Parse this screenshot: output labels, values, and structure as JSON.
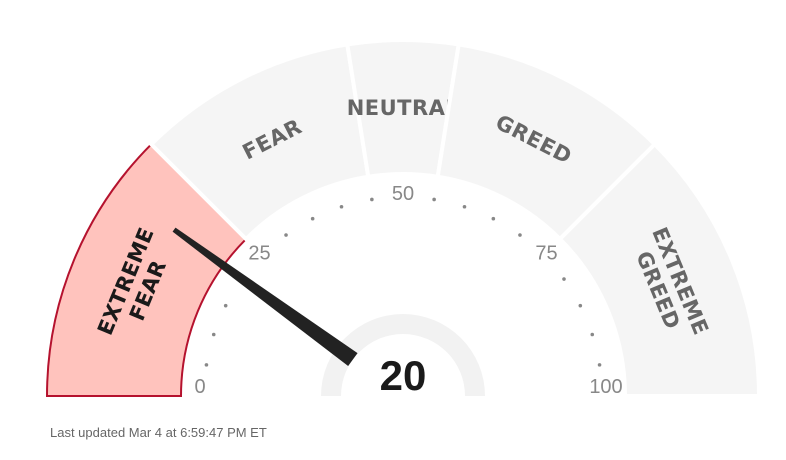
{
  "gauge": {
    "value": 20,
    "value_label": "20",
    "min": 0,
    "max": 100,
    "segments": [
      {
        "lines": [
          "EXTREME",
          "FEAR"
        ],
        "from": 0,
        "to": 25,
        "active": true
      },
      {
        "lines": [
          "FEAR"
        ],
        "from": 25,
        "to": 45,
        "active": false
      },
      {
        "lines": [
          "NEUTRAL"
        ],
        "from": 45,
        "to": 55,
        "active": false
      },
      {
        "lines": [
          "GREED"
        ],
        "from": 55,
        "to": 75,
        "active": false
      },
      {
        "lines": [
          "EXTREME",
          "GREED"
        ],
        "from": 75,
        "to": 100,
        "active": false
      }
    ],
    "tick_labels": [
      "0",
      "25",
      "50",
      "75",
      "100"
    ],
    "colors": {
      "segment": "#f5f5f5",
      "active_fill": "#ffc3bd",
      "active_stroke": "#b5122e",
      "needle": "#222222",
      "hub": "#f2f2f2"
    }
  },
  "footer": {
    "last_updated": "Last updated Mar 4 at 6:59:47 PM ET"
  }
}
